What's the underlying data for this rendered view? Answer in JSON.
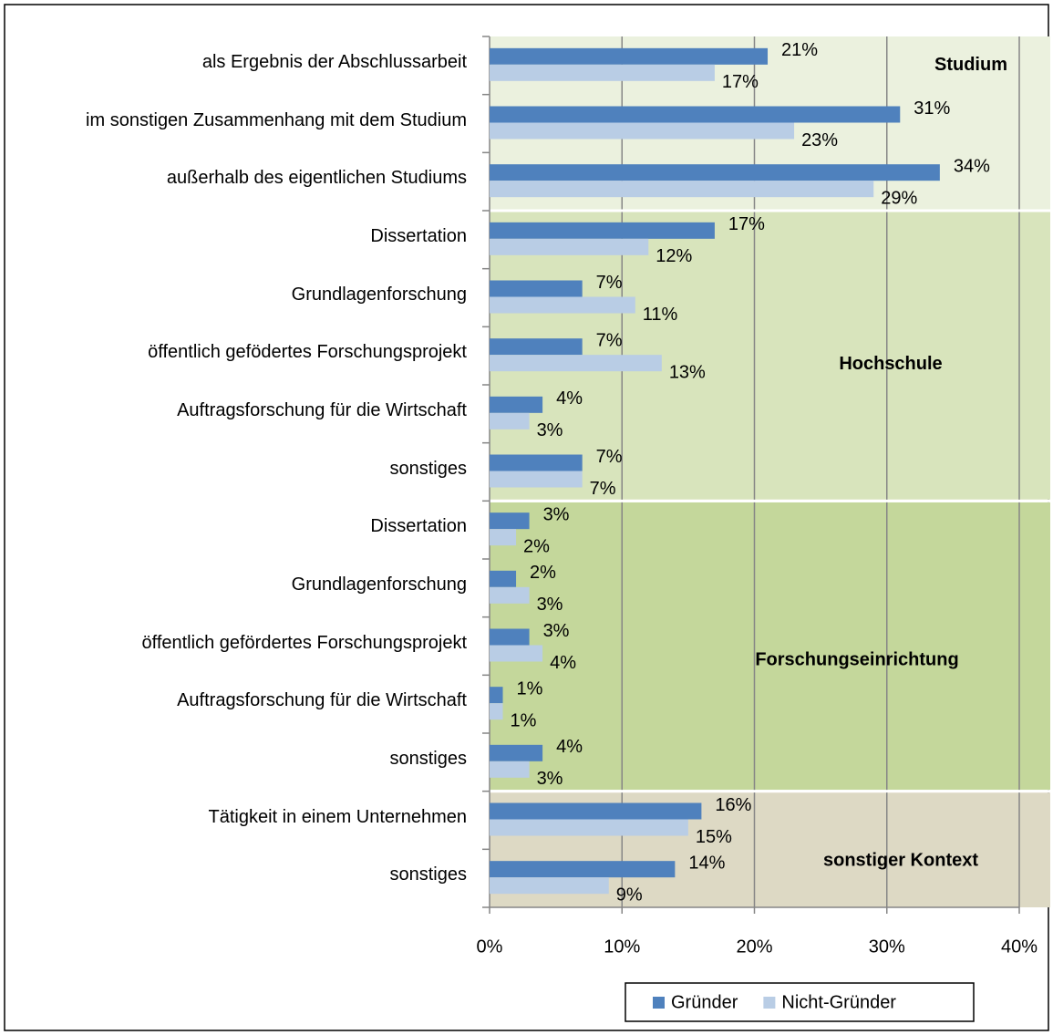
{
  "chart_data": {
    "type": "bar",
    "orientation": "horizontal",
    "groups": [
      {
        "label": "Studium",
        "color": "#ebf1de",
        "categories": [
          "als Ergebnis der Abschlussarbeit",
          "im sonstigen Zusammenhang mit dem Studium",
          "außerhalb des eigentlichen Studiums"
        ]
      },
      {
        "label": "Hochschule",
        "color": "#d8e4bc",
        "categories": [
          "Dissertation",
          "Grundlagenforschung",
          "öffentlich gefödertes Forschungsprojekt",
          "Auftragsforschung für die Wirtschaft",
          "sonstiges"
        ]
      },
      {
        "label": "Forschungseinrichtung",
        "color": "#c4d79b",
        "categories": [
          "Dissertation",
          "Grundlagenforschung",
          "öffentlich gefördertes Forschungsprojekt",
          "Auftragsforschung für die Wirtschaft",
          "sonstiges"
        ]
      },
      {
        "label": "sonstiger Kontext",
        "color": "#ddd9c4",
        "categories": [
          "Tätigkeit in einem Unternehmen",
          "sonstiges"
        ]
      }
    ],
    "series": [
      {
        "name": "Gründer",
        "color": "#4f81bd",
        "values": [
          21,
          31,
          34,
          17,
          7,
          7,
          4,
          7,
          3,
          2,
          3,
          1,
          4,
          16,
          14
        ],
        "value_labels": [
          "21%",
          "31%",
          "34%",
          "17%",
          "7%",
          "7%",
          "4%",
          "7%",
          "3%",
          "2%",
          "3%",
          "1%",
          "4%",
          "16%",
          "14%"
        ]
      },
      {
        "name": "Nicht-Gründer",
        "color": "#b9cde5",
        "values": [
          17,
          23,
          29,
          12,
          11,
          13,
          3,
          7,
          2,
          3,
          4,
          1,
          3,
          15,
          9
        ],
        "value_labels": [
          "17%",
          "23%",
          "29%",
          "12%",
          "11%",
          "13%",
          "3%",
          "7%",
          "2%",
          "3%",
          "4%",
          "1%",
          "3%",
          "15%",
          "9%"
        ]
      }
    ],
    "xlim": [
      0,
      40
    ],
    "xticks": [
      {
        "value": 0,
        "label": "0%"
      },
      {
        "value": 10,
        "label": "10%"
      },
      {
        "value": 20,
        "label": "20%"
      },
      {
        "value": 30,
        "label": "30%"
      },
      {
        "value": 40,
        "label": "40%"
      }
    ],
    "grid": true,
    "legend": "bottom-right"
  }
}
